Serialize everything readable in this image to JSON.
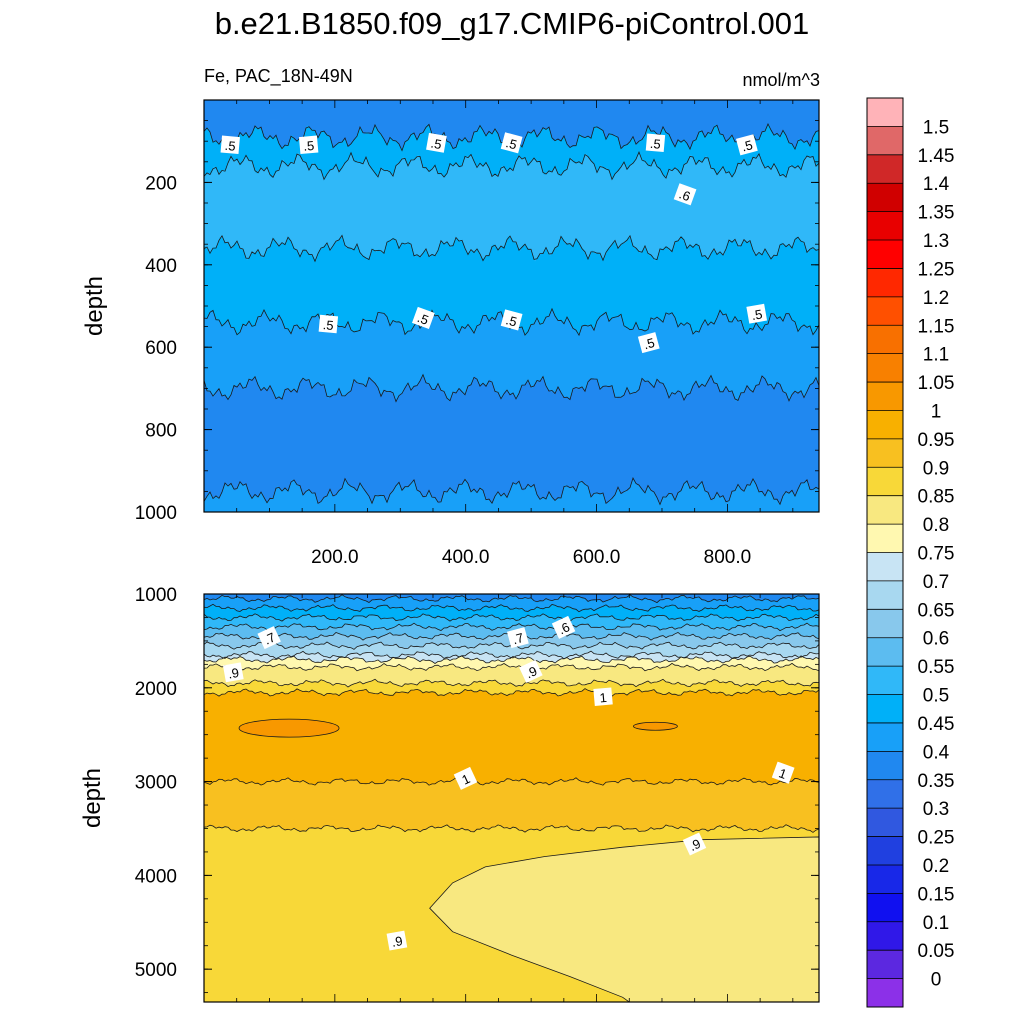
{
  "title": "b.e21.B1850.f09_g17.CMIP6-piControl.001",
  "subtitle_left": "Fe, PAC_18N-49N",
  "units": "nmol/m^3",
  "chart_data": [
    {
      "type": "heatmap",
      "panel": "upper",
      "ylabel": "depth",
      "xlim": [
        0,
        940
      ],
      "ylim": [
        1000,
        0
      ],
      "x_ticks": [
        200,
        400,
        600,
        800
      ],
      "x_tick_labels": [
        "200.0",
        "400.0",
        "600.0",
        "800.0"
      ],
      "y_ticks": [
        200,
        400,
        600,
        800,
        1000
      ],
      "y_tick_labels": [
        "200",
        "400",
        "600",
        "800",
        "1000"
      ],
      "bands": [
        {
          "from_depth": 0,
          "to_depth": 90,
          "value": 0.4
        },
        {
          "from_depth": 90,
          "to_depth": 160,
          "value": 0.5
        },
        {
          "from_depth": 160,
          "to_depth": 360,
          "value": 0.55
        },
        {
          "from_depth": 360,
          "to_depth": 540,
          "value": 0.5
        },
        {
          "from_depth": 540,
          "to_depth": 700,
          "value": 0.45
        },
        {
          "from_depth": 700,
          "to_depth": 950,
          "value": 0.4
        },
        {
          "from_depth": 950,
          "to_depth": 1000,
          "value": 0.45
        }
      ],
      "contour_labels": [
        {
          "text": ".5",
          "x": 40,
          "depth": 110
        },
        {
          "text": ".5",
          "x": 160,
          "depth": 110
        },
        {
          "text": ".5",
          "x": 355,
          "depth": 105
        },
        {
          "text": ".5",
          "x": 470,
          "depth": 105
        },
        {
          "text": ".5",
          "x": 690,
          "depth": 105
        },
        {
          "text": ".5",
          "x": 830,
          "depth": 110
        },
        {
          "text": ".6",
          "x": 735,
          "depth": 230
        },
        {
          "text": ".5",
          "x": 190,
          "depth": 545
        },
        {
          "text": ".5",
          "x": 335,
          "depth": 530
        },
        {
          "text": ".5",
          "x": 470,
          "depth": 535
        },
        {
          "text": ".5",
          "x": 680,
          "depth": 590
        },
        {
          "text": ".5",
          "x": 845,
          "depth": 520
        }
      ]
    },
    {
      "type": "heatmap",
      "panel": "lower",
      "ylabel": "depth",
      "xlim": [
        0,
        940
      ],
      "ylim": [
        5350,
        1000
      ],
      "y_ticks": [
        1000,
        2000,
        3000,
        4000,
        5000
      ],
      "y_tick_labels": [
        "1000",
        "2000",
        "3000",
        "4000",
        "5000"
      ],
      "bands": [
        {
          "from_depth": 1000,
          "to_depth": 1050,
          "value": 0.4
        },
        {
          "from_depth": 1050,
          "to_depth": 1150,
          "value": 0.45
        },
        {
          "from_depth": 1150,
          "to_depth": 1250,
          "value": 0.5
        },
        {
          "from_depth": 1250,
          "to_depth": 1350,
          "value": 0.55
        },
        {
          "from_depth": 1350,
          "to_depth": 1450,
          "value": 0.6
        },
        {
          "from_depth": 1450,
          "to_depth": 1550,
          "value": 0.65
        },
        {
          "from_depth": 1550,
          "to_depth": 1650,
          "value": 0.7
        },
        {
          "from_depth": 1650,
          "to_depth": 1700,
          "value": 0.75
        },
        {
          "from_depth": 1700,
          "to_depth": 1780,
          "value": 0.8
        },
        {
          "from_depth": 1780,
          "to_depth": 1950,
          "value": 0.85
        },
        {
          "from_depth": 1950,
          "to_depth": 2050,
          "value": 0.9
        },
        {
          "from_depth": 2050,
          "to_depth": 3000,
          "value": 1.0
        },
        {
          "from_depth": 3000,
          "to_depth": 3500,
          "value": 0.95
        },
        {
          "from_depth": 3500,
          "to_depth": 5350,
          "value": 0.9
        }
      ],
      "deep_region_value": 0.85,
      "patch_value": 1.05,
      "contour_labels": [
        {
          "text": ".7",
          "x": 100,
          "depth": 1470
        },
        {
          "text": ".7",
          "x": 480,
          "depth": 1470
        },
        {
          "text": ".6",
          "x": 550,
          "depth": 1360
        },
        {
          "text": ".9",
          "x": 45,
          "depth": 1840
        },
        {
          "text": ".9",
          "x": 500,
          "depth": 1830
        },
        {
          "text": "1",
          "x": 610,
          "depth": 2100
        },
        {
          "text": "1",
          "x": 400,
          "depth": 2970
        },
        {
          "text": "1",
          "x": 885,
          "depth": 2910
        },
        {
          "text": ".9",
          "x": 750,
          "depth": 3670
        },
        {
          "text": ".9",
          "x": 295,
          "depth": 4700
        }
      ]
    }
  ],
  "colorbar": {
    "levels": [
      "1.5",
      "1.45",
      "1.4",
      "1.35",
      "1.3",
      "1.25",
      "1.2",
      "1.15",
      "1.1",
      "1.05",
      "1",
      "0.95",
      "0.9",
      "0.85",
      "0.8",
      "0.75",
      "0.7",
      "0.65",
      "0.6",
      "0.55",
      "0.5",
      "0.45",
      "0.4",
      "0.35",
      "0.3",
      "0.25",
      "0.2",
      "0.15",
      "0.1",
      "0.05",
      "0"
    ],
    "colors": [
      "#ffb3b8",
      "#e06868",
      "#d02828",
      "#d00000",
      "#e80000",
      "#ff0000",
      "#ff2800",
      "#ff5000",
      "#f87000",
      "#f88000",
      "#f89800",
      "#f8b000",
      "#f8c020",
      "#f8d838",
      "#f8e880",
      "#fff8b0",
      "#c8e4f4",
      "#a8d8f0",
      "#88c8ec",
      "#5cbcf0",
      "#30b8f8",
      "#00b0f8",
      "#18a0f8",
      "#2088f0",
      "#3070e8",
      "#3058e0",
      "#2040e0",
      "#1828e8",
      "#1010f0",
      "#3018e8",
      "#5c28e0",
      "#8c30e8"
    ]
  }
}
